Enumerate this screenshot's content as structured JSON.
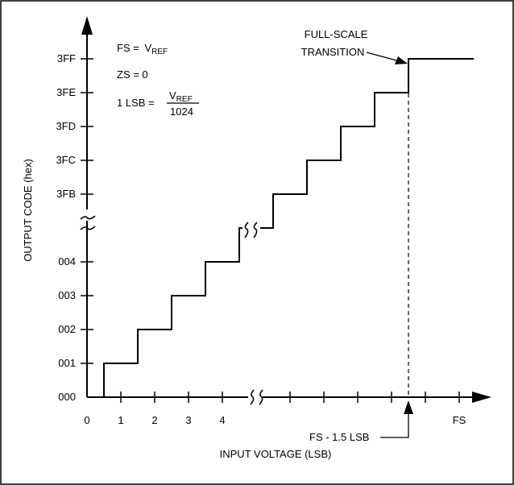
{
  "chart_data": {
    "type": "line",
    "xlabel": "INPUT VOLTAGE (LSB)",
    "ylabel": "OUTPUT CODE (hex)",
    "x_ticks": [
      "0",
      "1",
      "2",
      "3",
      "4",
      "FS"
    ],
    "y_ticks": [
      "000",
      "001",
      "002",
      "003",
      "004",
      "3FB",
      "3FC",
      "3FD",
      "3FE",
      "3FF"
    ],
    "legend": {
      "fs_lhs": "FS =",
      "fs_v": "V",
      "fs_sub": "REF",
      "zs": "ZS = 0",
      "lsb_lhs": "1 LSB =",
      "lsb_num_v": "V",
      "lsb_num_sub": "REF",
      "lsb_den": "1024"
    },
    "annotations": {
      "fs_line1": "FULL-SCALE",
      "fs_line2": "TRANSITION",
      "fs_minus": "FS - 1.5 LSB"
    },
    "steps_low": [
      {
        "x": 0.5,
        "code": "001"
      },
      {
        "x": 1.5,
        "code": "002"
      },
      {
        "x": 2.5,
        "code": "003"
      },
      {
        "x": 3.5,
        "code": "004"
      }
    ],
    "steps_high": [
      {
        "x_from_fs": -5.5,
        "code": "3FB"
      },
      {
        "x_from_fs": -4.5,
        "code": "3FC"
      },
      {
        "x_from_fs": -3.5,
        "code": "3FD"
      },
      {
        "x_from_fs": -2.5,
        "code": "3FE"
      },
      {
        "x_from_fs": -1.5,
        "code": "3FF"
      }
    ]
  }
}
